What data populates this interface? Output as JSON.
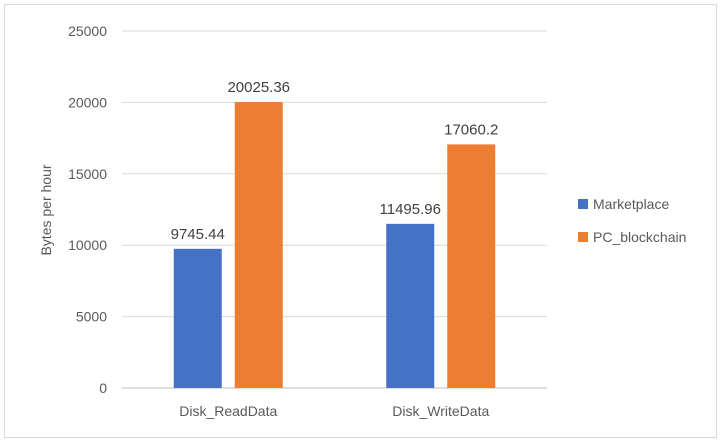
{
  "chart_data": {
    "type": "bar",
    "categories": [
      "Disk_ReadData",
      "Disk_WriteData"
    ],
    "series": [
      {
        "name": "Marketplace",
        "values": [
          9745.44,
          11495.96
        ],
        "color": "#4472c4"
      },
      {
        "name": "PC_blockchain",
        "values": [
          20025.36,
          17060.2
        ],
        "color": "#ed7d31"
      }
    ],
    "data_labels": [
      [
        "9745.44",
        "11495.96"
      ],
      [
        "20025.36",
        "17060.2"
      ]
    ],
    "ylabel": "Bytes per hour",
    "ylim": [
      0,
      25000
    ],
    "yticks": [
      0,
      5000,
      10000,
      15000,
      20000,
      25000
    ],
    "grid": true,
    "legend_position": "right"
  }
}
